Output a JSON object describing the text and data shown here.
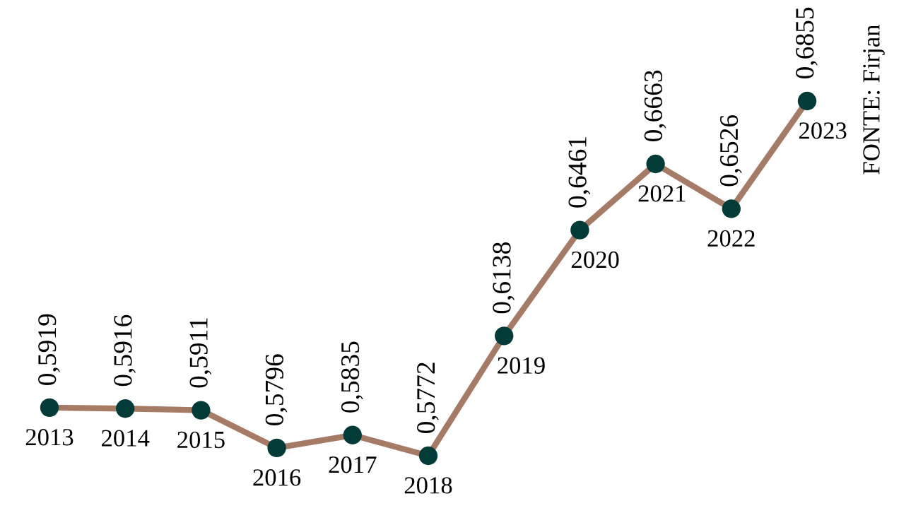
{
  "chart_data": {
    "type": "line",
    "categories": [
      "2013",
      "2014",
      "2015",
      "2016",
      "2017",
      "2018",
      "2019",
      "2020",
      "2021",
      "2022",
      "2023"
    ],
    "series": [
      {
        "color": "#a57b66",
        "colors": [
          "#023b37",
          "#023b37",
          "#023b37",
          "#023b37",
          "#023b37",
          "#023b37",
          "#023b37",
          "#023b37",
          "#023b37",
          "#023b37",
          "#023b37"
        ],
        "values": [
          0.5919,
          0.5916,
          0.5911,
          0.5796,
          0.5835,
          0.5772,
          0.6138,
          0.6461,
          0.6663,
          0.6526,
          0.6855
        ],
        "value_labels": [
          "0,5919",
          "0,5916",
          "0,5911",
          "0,5796",
          "0,5835",
          "0,5772",
          "0,6138",
          "0,6461",
          "0,6663",
          "0,6526",
          "0,6855"
        ]
      }
    ],
    "marker": "circle",
    "tick_labels": "x",
    "annotations": [
      "FONTE: Firjan"
    ]
  }
}
